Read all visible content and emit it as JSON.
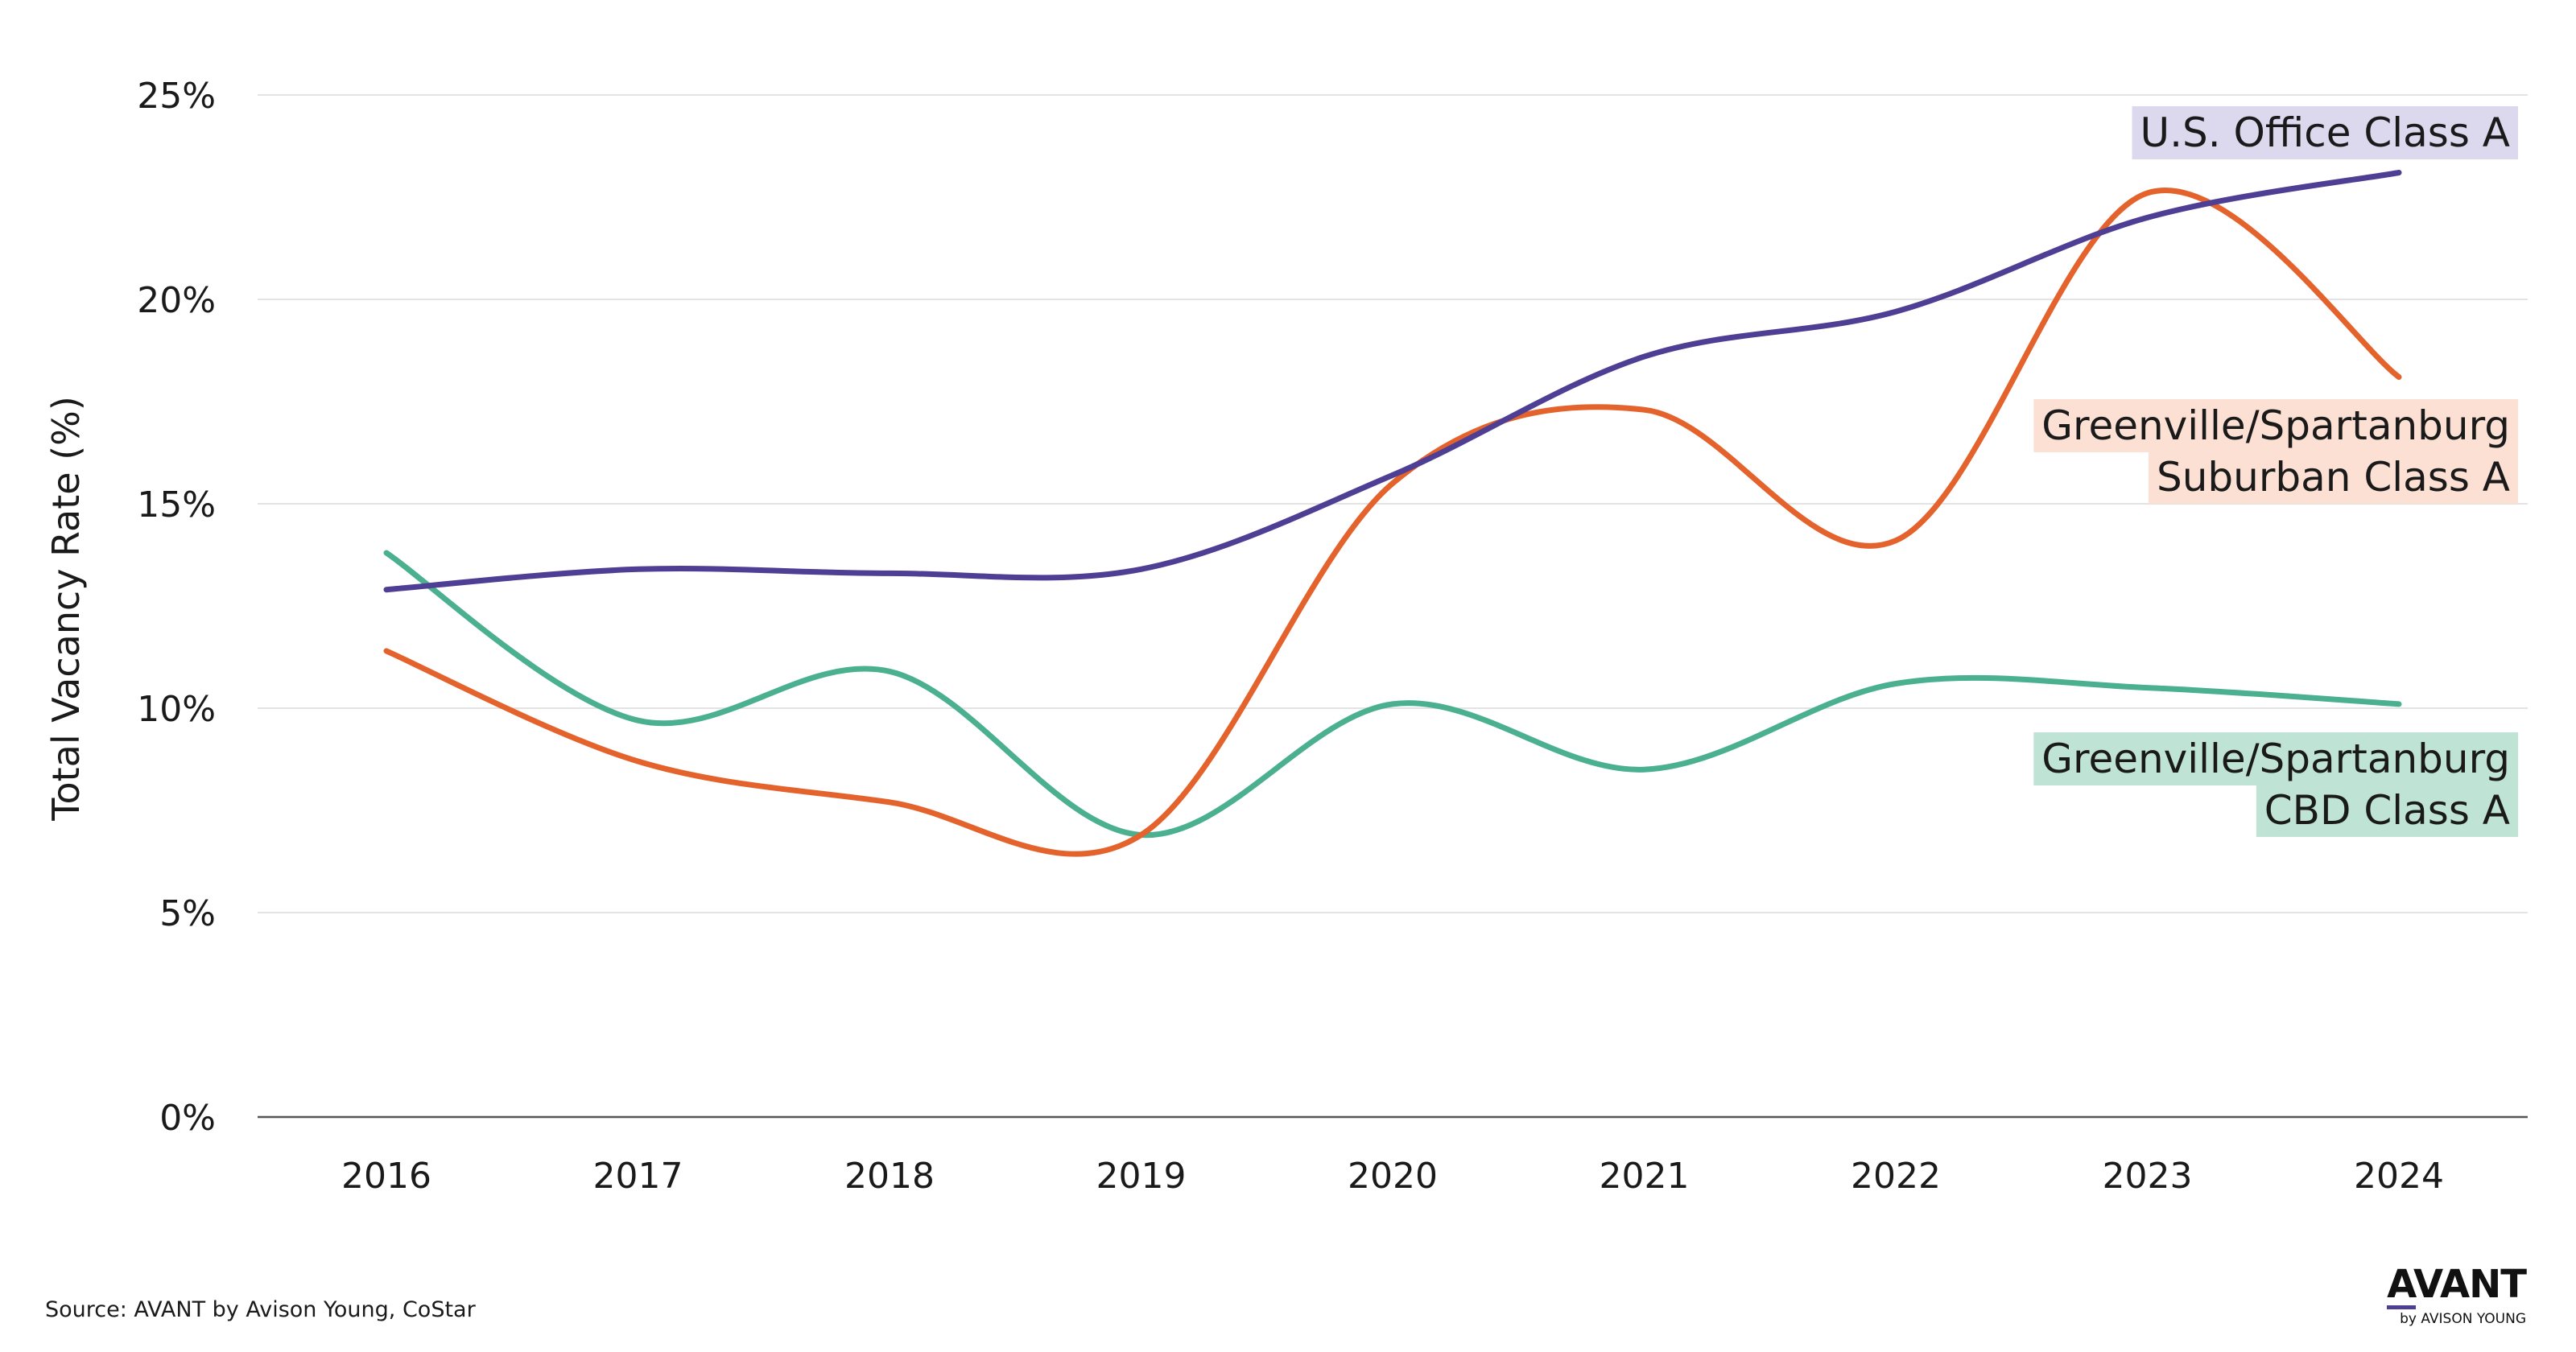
{
  "chart_data": {
    "type": "line",
    "categories": [
      "2016",
      "2017",
      "2018",
      "2019",
      "2020",
      "2021",
      "2022",
      "2023",
      "2024"
    ],
    "ylabel": "Total Vacancy Rate (%)",
    "ylim": [
      0,
      25
    ],
    "yticks": [
      0,
      5,
      10,
      15,
      20,
      25
    ],
    "ytick_labels": [
      "0%",
      "5%",
      "10%",
      "15%",
      "20%",
      "25%"
    ],
    "grid": true,
    "series": [
      {
        "name": "U.S. Office Class A",
        "label_lines": [
          "U.S. Office Class A"
        ],
        "color": "#4e3f94",
        "label_bg": "#dcd8ee",
        "values": [
          12.9,
          13.4,
          13.3,
          13.4,
          15.7,
          18.6,
          19.7,
          22.0,
          23.1
        ]
      },
      {
        "name": "Greenville/Spartanburg Suburban Class A",
        "label_lines": [
          "Greenville/Spartanburg",
          "Suburban Class A"
        ],
        "color": "#e4632d",
        "label_bg": "#fbe0d3",
        "values": [
          11.4,
          8.7,
          7.7,
          6.9,
          15.5,
          17.3,
          14.1,
          22.6,
          18.1
        ]
      },
      {
        "name": "Greenville/Spartanburg CBD Class A",
        "label_lines": [
          "Greenville/Spartanburg",
          "CBD Class A"
        ],
        "color": "#4bb08f",
        "label_bg": "#bfe4d6",
        "values": [
          13.8,
          9.7,
          10.9,
          6.9,
          10.1,
          8.5,
          10.6,
          10.5,
          10.1
        ]
      }
    ]
  },
  "source": "Source: AVANT by Avison Young, CoStar",
  "logo": {
    "main": "AVANT",
    "sub": "by AVISON YOUNG"
  }
}
